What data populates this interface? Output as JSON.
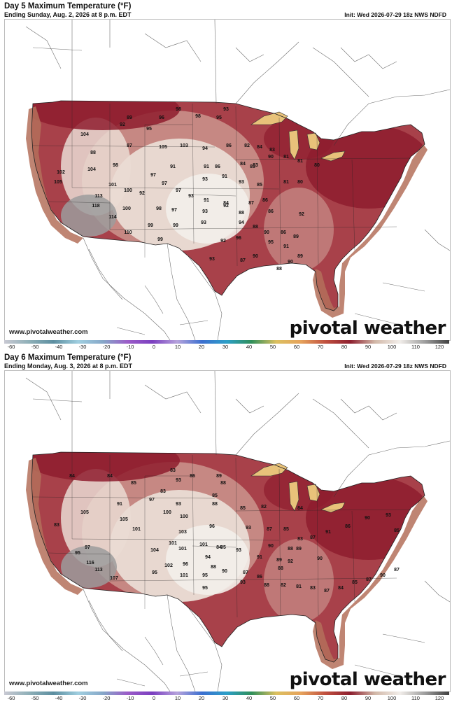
{
  "panels": [
    {
      "title": "Day 5 Maximum Temperature (°F)",
      "subtitle": "Ending Sunday, Aug. 2, 2026 at 8 p.m. EDT",
      "init": "Init: Wed 2026-07-29 18z NWS NDFD",
      "website": "www.pivotalweather.com",
      "brand": "pivotal weather",
      "values": [
        "89",
        "98",
        "93",
        "95",
        "96",
        "98",
        "104",
        "92",
        "87",
        "95",
        "105",
        "103",
        "94",
        "86",
        "82",
        "84",
        "83",
        "88",
        "86",
        "84",
        "83",
        "90",
        "81",
        "81",
        "102",
        "98",
        "91",
        "91",
        "85",
        "80",
        "97",
        "93",
        "91",
        "93",
        "85",
        "81",
        "80",
        "104",
        "101",
        "100",
        "97",
        "97",
        "93",
        "91",
        "84",
        "87",
        "86",
        "118",
        "114",
        "100",
        "92",
        "98",
        "97",
        "93",
        "92",
        "88",
        "86",
        "92",
        "110",
        "99",
        "99",
        "93",
        "94",
        "88",
        "90",
        "86",
        "89",
        "92",
        "96",
        "95",
        "91",
        "90",
        "89",
        "99",
        "93",
        "87",
        "90",
        "88",
        "105",
        "113"
      ]
    },
    {
      "title": "Day 6 Maximum Temperature (°F)",
      "subtitle": "Ending Monday, Aug. 3, 2026 at 8 p.m. EDT",
      "init": "Init: Wed 2026-07-29 18z NWS NDFD",
      "website": "www.pivotalweather.com",
      "brand": "pivotal weather",
      "values": [
        "84",
        "83",
        "86",
        "89",
        "93",
        "88",
        "84",
        "85",
        "85",
        "83",
        "91",
        "97",
        "93",
        "88",
        "85",
        "82",
        "84",
        "83",
        "105",
        "100",
        "100",
        "96",
        "93",
        "87",
        "85",
        "83",
        "88",
        "84",
        "101",
        "104",
        "105",
        "102",
        "101",
        "95",
        "90",
        "87",
        "86",
        "116",
        "113",
        "101",
        "103",
        "101",
        "101",
        "95",
        "93",
        "90",
        "88",
        "107",
        "95",
        "97",
        "96",
        "94",
        "91",
        "89",
        "92",
        "95",
        "93",
        "95",
        "88",
        "82",
        "81",
        "83",
        "87",
        "84",
        "85",
        "87",
        "90",
        "87",
        "85",
        "93",
        "90",
        "86",
        "91",
        "87",
        "89",
        "88",
        "90"
      ]
    }
  ],
  "colorbar": {
    "ticks": [
      "-60",
      "-50",
      "-40",
      "-30",
      "-20",
      "-10",
      "0",
      "10",
      "20",
      "30",
      "40",
      "50",
      "60",
      "70",
      "80",
      "90",
      "100",
      "110",
      "120"
    ],
    "min": -60,
    "max": 120,
    "stops": [
      {
        "v": -60,
        "c": "#c8c8d2"
      },
      {
        "v": -50,
        "c": "#8fb0b8"
      },
      {
        "v": -40,
        "c": "#5c8ea0"
      },
      {
        "v": -30,
        "c": "#a0cfe0"
      },
      {
        "v": -20,
        "c": "#86a7c8"
      },
      {
        "v": -10,
        "c": "#9b5cc8"
      },
      {
        "v": 0,
        "c": "#7b3fc0"
      },
      {
        "v": 10,
        "c": "#b6a3dc"
      },
      {
        "v": 20,
        "c": "#3b6fd0"
      },
      {
        "v": 30,
        "c": "#2c9fc8"
      },
      {
        "v": 40,
        "c": "#2f8f5a"
      },
      {
        "v": 50,
        "c": "#dcc060"
      },
      {
        "v": 60,
        "c": "#e6a35c"
      },
      {
        "v": 70,
        "c": "#c0503f"
      },
      {
        "v": 80,
        "c": "#8d1f2f"
      },
      {
        "v": 90,
        "c": "#d2b8a8"
      },
      {
        "v": 100,
        "c": "#f2eeea"
      },
      {
        "v": 110,
        "c": "#a0a0a0"
      },
      {
        "v": 120,
        "c": "#404040"
      }
    ]
  },
  "colors": {
    "hot_red": "#8e1d2e",
    "mid_red": "#a8414a",
    "warm_pink": "#c9908a",
    "pale": "#eadcd4",
    "white_hot": "#f3efea",
    "gray_hot": "#9c9c9c",
    "ocean_band": "#b4705a",
    "ocean_band_light": "#d9a07f",
    "lake_yellow": "#e8c27a"
  }
}
